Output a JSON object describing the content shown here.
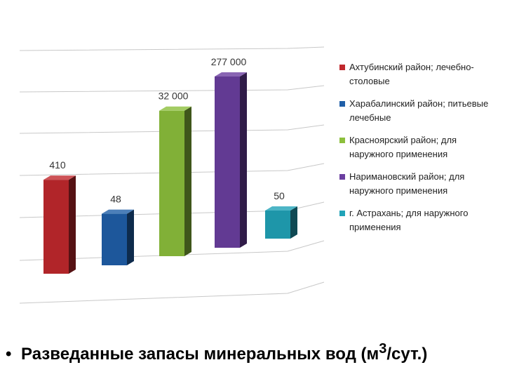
{
  "chart_data": {
    "type": "bar",
    "categories": [
      "Ахтубинский район; лечебно-столовые",
      "Харабалинский район; питьевые лечебные",
      "Красноярский район; для наружного применения",
      "Наримановский район; для наружного применения",
      "г. Астрахань; для наружного применения"
    ],
    "values": [
      410,
      48,
      32000,
      277000,
      50
    ],
    "data_labels": [
      "410",
      "48",
      "32 000",
      "277 000",
      "50"
    ],
    "colors": [
      "#c0282d",
      "#1f5fa8",
      "#8cbf3c",
      "#6b3fa0",
      "#21a3b8"
    ],
    "grid": true,
    "legend_position": "right",
    "title": "",
    "xlabel": "",
    "ylabel": ""
  },
  "legend": {
    "items": [
      {
        "label": "Ахтубинский район; лечебно-столовые",
        "color": "#c0282d"
      },
      {
        "label": "Харабалинский район; питьевые лечебные",
        "color": "#1f5fa8"
      },
      {
        "label": "Красноярский район; для наружного применения",
        "color": "#8cbf3c"
      },
      {
        "label": "Наримановский район; для наружного применения",
        "color": "#6b3fa0"
      },
      {
        "label": "г. Астрахань; для наружного применения",
        "color": "#21a3b8"
      }
    ]
  },
  "footer": {
    "bullet": "•",
    "text_main": "Разведанные запасы минеральных вод (м",
    "text_sup": "3",
    "text_end": "/сут.)"
  }
}
